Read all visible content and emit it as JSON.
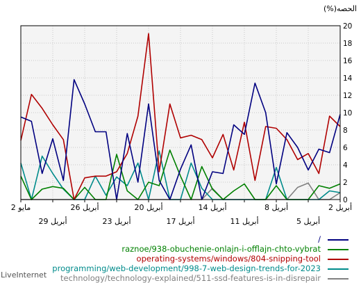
{
  "chart_data": {
    "type": "line",
    "ylabel": "الحصه(%)",
    "ylim": [
      0,
      20
    ],
    "yticks": [
      0,
      2,
      4,
      6,
      8,
      10,
      12,
      14,
      16,
      18,
      20
    ],
    "grid": true,
    "x_tick_labels_top": [
      "2 مايو",
      "26 أبريل",
      "20 أبريل",
      "14 أبريل",
      "8 أبريل",
      "2 أبريل"
    ],
    "x_tick_labels_bottom": [
      "29 أبريل",
      "23 أبريل",
      "17 أبريل",
      "11 أبريل",
      "5 أبريل"
    ],
    "series": [
      {
        "name": "/",
        "color": "#000080",
        "values": [
          9.5,
          9.0,
          3.0,
          7.0,
          2.2,
          13.8,
          11.0,
          7.8,
          7.8,
          0,
          7.6,
          2.0,
          11.0,
          2.2,
          0,
          3.5,
          6.3,
          0,
          3.2,
          3.0,
          8.6,
          7.5,
          13.4,
          10.0,
          1.8,
          7.7,
          6.0,
          3.4,
          5.8,
          5.4,
          9.8
        ]
      },
      {
        "name": "raznoe/938-obuchenie-onlajn-i-offlajn-chto-vybrat",
        "color": "#008000",
        "values": [
          2.7,
          0,
          1.2,
          1.5,
          1.3,
          0,
          1.4,
          0,
          0,
          5.2,
          1.0,
          0,
          2.0,
          1.6,
          5.7,
          2.7,
          0,
          3.8,
          1.2,
          0,
          1.0,
          1.8,
          0,
          0,
          1.6,
          0,
          0,
          0,
          1.6,
          1.3,
          1.8
        ]
      },
      {
        "name": "operating-systems/windows/804-snipping-tool",
        "color": "#b00000",
        "values": [
          6.8,
          12.1,
          10.5,
          8.6,
          6.9,
          0,
          2.5,
          2.7,
          2.7,
          3.2,
          5.3,
          9.6,
          19.1,
          3.2,
          11.0,
          7.1,
          7.4,
          6.9,
          4.8,
          7.5,
          3.4,
          8.9,
          2.2,
          8.4,
          8.2,
          6.9,
          4.6,
          5.3,
          3.0,
          9.6,
          8.4
        ]
      },
      {
        "name": "programming/web-development/998-7-web-design-trends-for-2023",
        "color": "#008b8b",
        "values": [
          4.2,
          0,
          5.0,
          3.0,
          1.2,
          0,
          0,
          2.7,
          0.5,
          2.6,
          1.6,
          4.2,
          0,
          5.6,
          0,
          0,
          4.2,
          1.3,
          0,
          0,
          0,
          0,
          0,
          0,
          3.7,
          0,
          0,
          0,
          0,
          1.0,
          0.8
        ]
      },
      {
        "name": "technology/technology-explained/511-ssd-features-is-in-disrepair",
        "color": "#808080",
        "values": [
          0,
          0,
          0,
          0,
          0,
          0,
          0,
          0,
          0,
          0,
          0,
          0,
          0,
          0,
          0,
          0,
          0,
          0,
          1.3,
          0,
          0,
          0,
          0,
          0,
          0,
          0,
          1.4,
          1.9,
          0,
          0,
          0.8
        ]
      }
    ]
  },
  "watermark": "LiveInternet"
}
